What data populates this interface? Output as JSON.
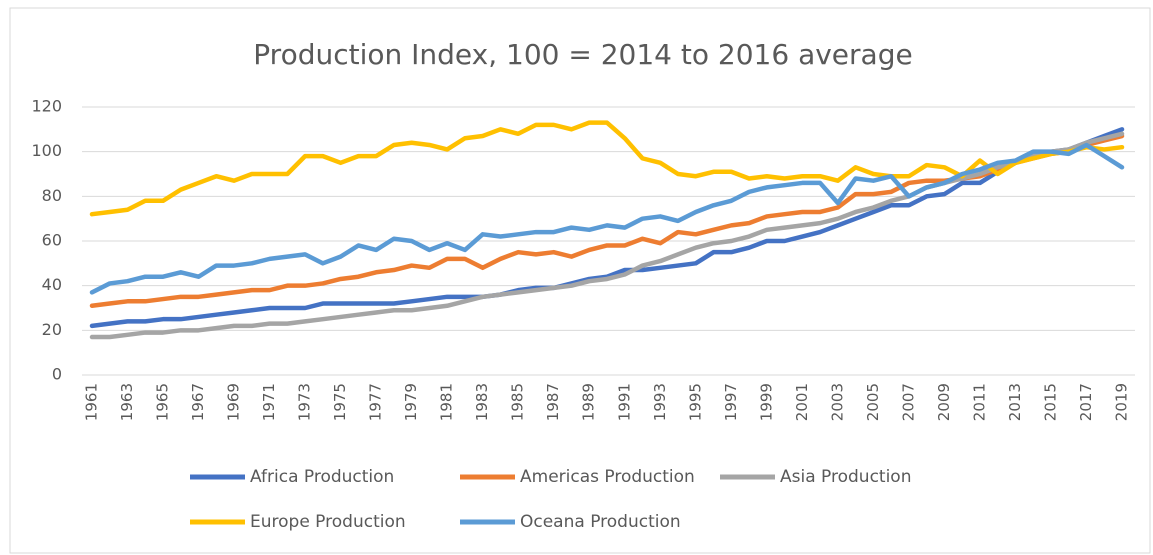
{
  "chart_data": {
    "type": "line",
    "title": "Production Index, 100 = 2014 to 2016 average",
    "categories": [
      "1961",
      null,
      "1963",
      null,
      "1965",
      null,
      "1967",
      null,
      "1969",
      null,
      "1971",
      null,
      "1973",
      null,
      "1975",
      null,
      "1977",
      null,
      "1979",
      null,
      "1981",
      null,
      "1983",
      null,
      "1985",
      null,
      "1987",
      null,
      "1989",
      null,
      "1991",
      null,
      "1993",
      null,
      "1995",
      null,
      "1997",
      null,
      "1999",
      null,
      "2001",
      null,
      "2003",
      null,
      "2005",
      null,
      "2007",
      null,
      "2009",
      null,
      "2011",
      null,
      "2013",
      null,
      "2015",
      null,
      "2017",
      null,
      "2019"
    ],
    "series": [
      {
        "name": "Africa Production",
        "color": "#4472c4",
        "values": [
          22,
          23,
          24,
          24,
          25,
          25,
          26,
          27,
          28,
          29,
          30,
          30,
          30,
          32,
          32,
          32,
          32,
          32,
          33,
          34,
          35,
          35,
          35,
          36,
          38,
          39,
          39,
          41,
          43,
          44,
          47,
          47,
          48,
          49,
          50,
          55,
          55,
          57,
          60,
          60,
          62,
          64,
          67,
          70,
          73,
          76,
          76,
          80,
          81,
          86,
          86,
          91,
          95,
          98,
          100,
          101,
          104,
          107,
          110
        ]
      },
      {
        "name": "Americas Production",
        "color": "#ed7d31",
        "values": [
          31,
          32,
          33,
          33,
          34,
          35,
          35,
          36,
          37,
          38,
          38,
          40,
          40,
          41,
          43,
          44,
          46,
          47,
          49,
          48,
          52,
          52,
          48,
          52,
          55,
          54,
          55,
          53,
          56,
          58,
          58,
          61,
          59,
          64,
          63,
          65,
          67,
          68,
          71,
          72,
          73,
          73,
          75,
          81,
          81,
          82,
          86,
          87,
          87,
          88,
          89,
          92,
          95,
          97,
          99,
          100,
          103,
          105,
          107
        ]
      },
      {
        "name": "Asia Production",
        "color": "#a5a5a5",
        "values": [
          17,
          17,
          18,
          19,
          19,
          20,
          20,
          21,
          22,
          22,
          23,
          23,
          24,
          25,
          26,
          27,
          28,
          29,
          29,
          30,
          31,
          33,
          35,
          36,
          37,
          38,
          39,
          40,
          42,
          43,
          45,
          49,
          51,
          54,
          57,
          59,
          60,
          62,
          65,
          66,
          67,
          68,
          70,
          73,
          75,
          78,
          80,
          84,
          86,
          88,
          90,
          93,
          95,
          98,
          100,
          101,
          104,
          106,
          108
        ]
      },
      {
        "name": "Europe Production",
        "color": "#ffc000",
        "values": [
          72,
          73,
          74,
          78,
          78,
          83,
          86,
          89,
          87,
          90,
          90,
          90,
          98,
          98,
          95,
          98,
          98,
          103,
          104,
          103,
          101,
          106,
          107,
          110,
          108,
          112,
          112,
          110,
          113,
          113,
          106,
          97,
          95,
          90,
          89,
          91,
          91,
          88,
          89,
          88,
          89,
          89,
          87,
          93,
          90,
          89,
          89,
          94,
          93,
          89,
          96,
          90,
          95,
          97,
          99,
          100,
          102,
          101,
          102
        ]
      },
      {
        "name": "Oceana Production",
        "color": "#5b9bd5",
        "values": [
          37,
          41,
          42,
          44,
          44,
          46,
          44,
          49,
          49,
          50,
          52,
          53,
          54,
          50,
          53,
          58,
          56,
          61,
          60,
          56,
          59,
          56,
          63,
          62,
          63,
          64,
          64,
          66,
          65,
          67,
          66,
          70,
          71,
          69,
          73,
          76,
          78,
          82,
          84,
          85,
          86,
          86,
          77,
          88,
          87,
          89,
          80,
          84,
          86,
          90,
          92,
          95,
          96,
          100,
          100,
          99,
          103,
          98,
          93
        ]
      }
    ],
    "ylim": [
      0,
      120
    ],
    "yticks": [
      0,
      20,
      40,
      60,
      80,
      100,
      120
    ],
    "grid": true,
    "legend": "bottom"
  }
}
